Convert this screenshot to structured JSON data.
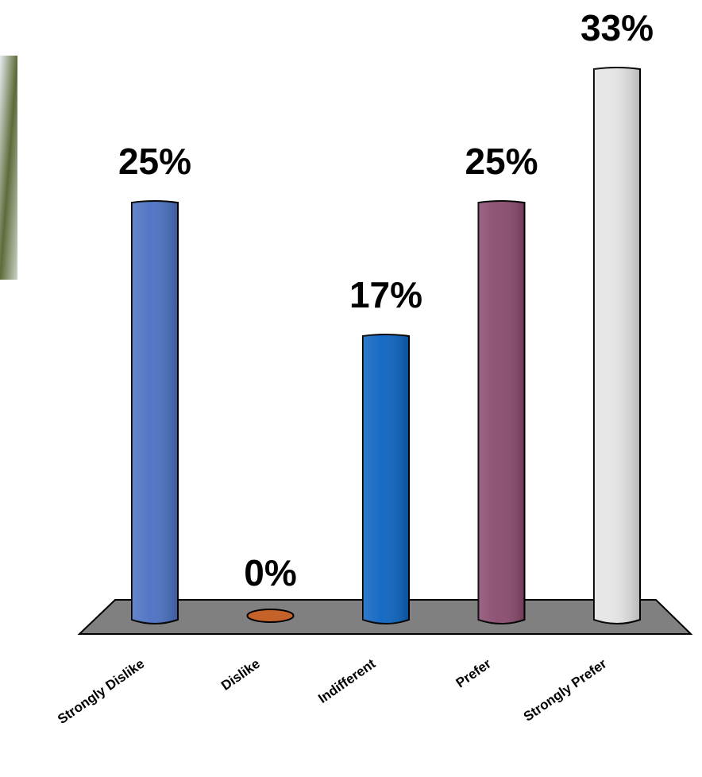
{
  "chart_data": {
    "type": "bar",
    "categories": [
      "Strongly Dislike",
      "Dislike",
      "Indifferent",
      "Prefer",
      "Strongly Prefer"
    ],
    "values": [
      25,
      0,
      17,
      25,
      33
    ],
    "value_labels": [
      "25%",
      "0%",
      "17%",
      "25%",
      "33%"
    ],
    "colors": [
      "#4a70c2",
      "#c5622a",
      "#0b63c1",
      "#8a4a6d",
      "#e4e4e4"
    ]
  }
}
